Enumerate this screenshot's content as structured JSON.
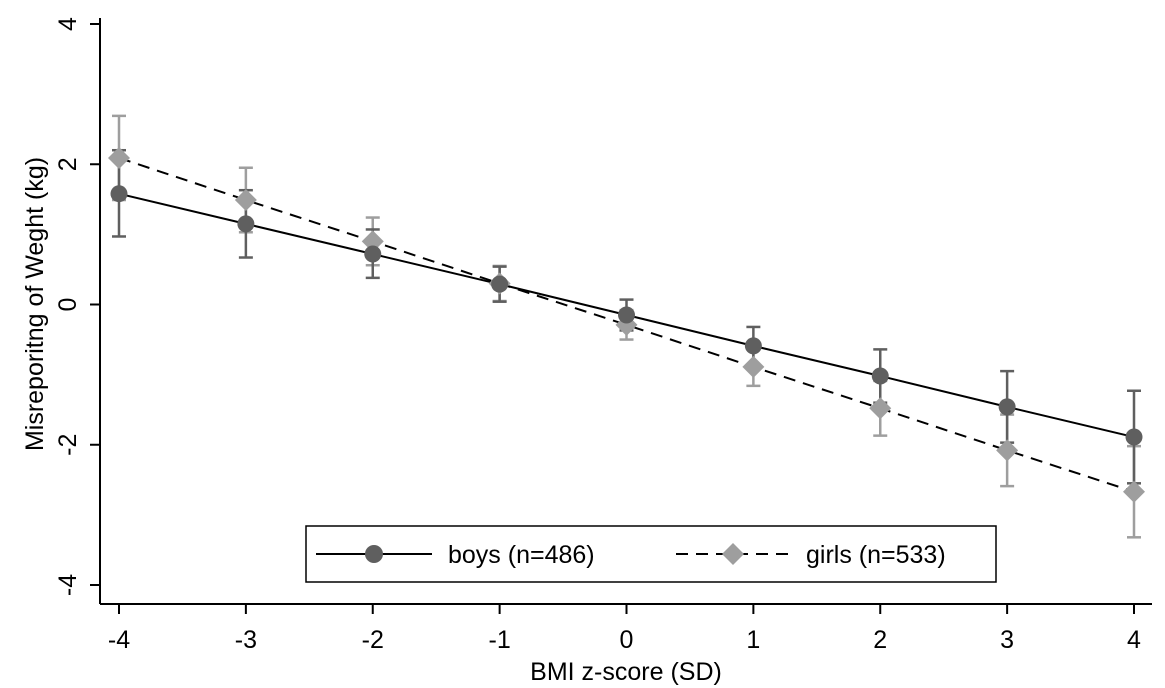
{
  "chart_data": {
    "type": "line",
    "title": "",
    "xlabel": "BMI z-score (SD)",
    "ylabel": "Misreporitng of Weght (kg)",
    "xlim": [
      -4,
      4
    ],
    "ylim": [
      -4,
      4
    ],
    "x_ticks": [
      -4,
      -3,
      -2,
      -1,
      0,
      1,
      2,
      3,
      4
    ],
    "x_tick_labels": [
      "-4",
      "-3",
      "-2",
      "-1",
      "0",
      "1",
      "2",
      "3",
      "4"
    ],
    "y_ticks": [
      -4,
      -2,
      0,
      2,
      4
    ],
    "y_tick_labels": [
      "-4",
      "-2",
      "0",
      "2",
      "4"
    ],
    "grid": false,
    "legend_position": "bottom",
    "series": [
      {
        "name": "boys (n=486)",
        "color": "#5f5f5f",
        "line_style": "solid",
        "marker": "circle",
        "x": [
          -4,
          -3,
          -2,
          -1,
          0,
          1,
          2,
          3,
          4
        ],
        "y": [
          1.58,
          1.15,
          0.72,
          0.29,
          -0.15,
          -0.59,
          -1.02,
          -1.46,
          -1.89
        ],
        "ci_low": [
          0.97,
          0.67,
          0.38,
          0.04,
          -0.37,
          -0.86,
          -1.4,
          -1.97,
          -2.55
        ],
        "ci_high": [
          2.2,
          1.63,
          1.07,
          0.54,
          0.07,
          -0.32,
          -0.64,
          -0.95,
          -1.23
        ]
      },
      {
        "name": "girls (n=533)",
        "color": "#9e9e9e",
        "line_style": "dashed",
        "marker": "diamond",
        "x": [
          -4,
          -3,
          -2,
          -1,
          0,
          1,
          2,
          3,
          4
        ],
        "y": [
          2.09,
          1.49,
          0.9,
          0.3,
          -0.29,
          -0.89,
          -1.48,
          -2.08,
          -2.67
        ],
        "ci_low": [
          1.49,
          1.03,
          0.56,
          0.05,
          -0.5,
          -1.16,
          -1.87,
          -2.59,
          -3.32
        ],
        "ci_high": [
          2.69,
          1.95,
          1.24,
          0.55,
          -0.08,
          -0.62,
          -1.09,
          -1.57,
          -2.02
        ]
      }
    ]
  }
}
